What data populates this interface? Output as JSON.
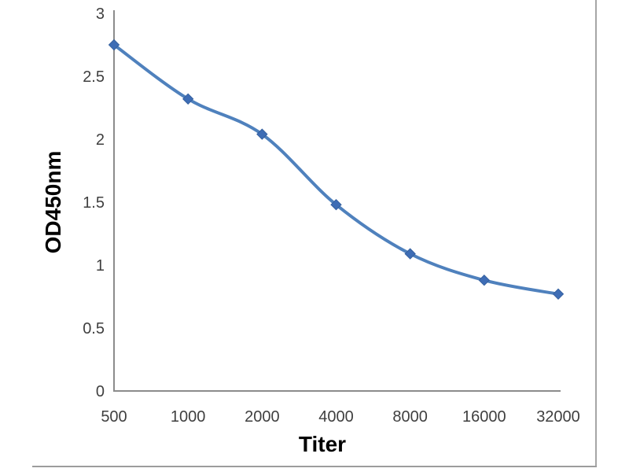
{
  "chart_data": {
    "type": "line",
    "title": "",
    "xlabel": "Titer",
    "ylabel": "OD450nm",
    "categories": [
      "500",
      "1000",
      "2000",
      "4000",
      "8000",
      "16000",
      "32000"
    ],
    "series": [
      {
        "name": "OD450nm",
        "values": [
          2.75,
          2.32,
          2.04,
          1.48,
          1.09,
          0.88,
          0.77
        ]
      }
    ],
    "ylim": [
      0,
      3
    ],
    "yticks": [
      {
        "value": 3,
        "label": "3"
      },
      {
        "value": 2.5,
        "label": "2.5"
      },
      {
        "value": 2,
        "label": "2"
      },
      {
        "value": 1.5,
        "label": "1.5"
      },
      {
        "value": 1,
        "label": "1"
      },
      {
        "value": 0.5,
        "label": "0.5"
      },
      {
        "value": 0,
        "label": "0"
      }
    ],
    "x_scale": "doubling-dilution-categorical",
    "grid": false,
    "legend": false,
    "smooth_line": true,
    "marker": "diamond",
    "colors": {
      "line": "#4f81bd",
      "marker_fill": "#3e6db5",
      "marker_stroke": "#35609f",
      "axis": "#8c8c8c",
      "tick_text": "#3f3f3f",
      "frame_border": "#a6a6a6"
    }
  }
}
